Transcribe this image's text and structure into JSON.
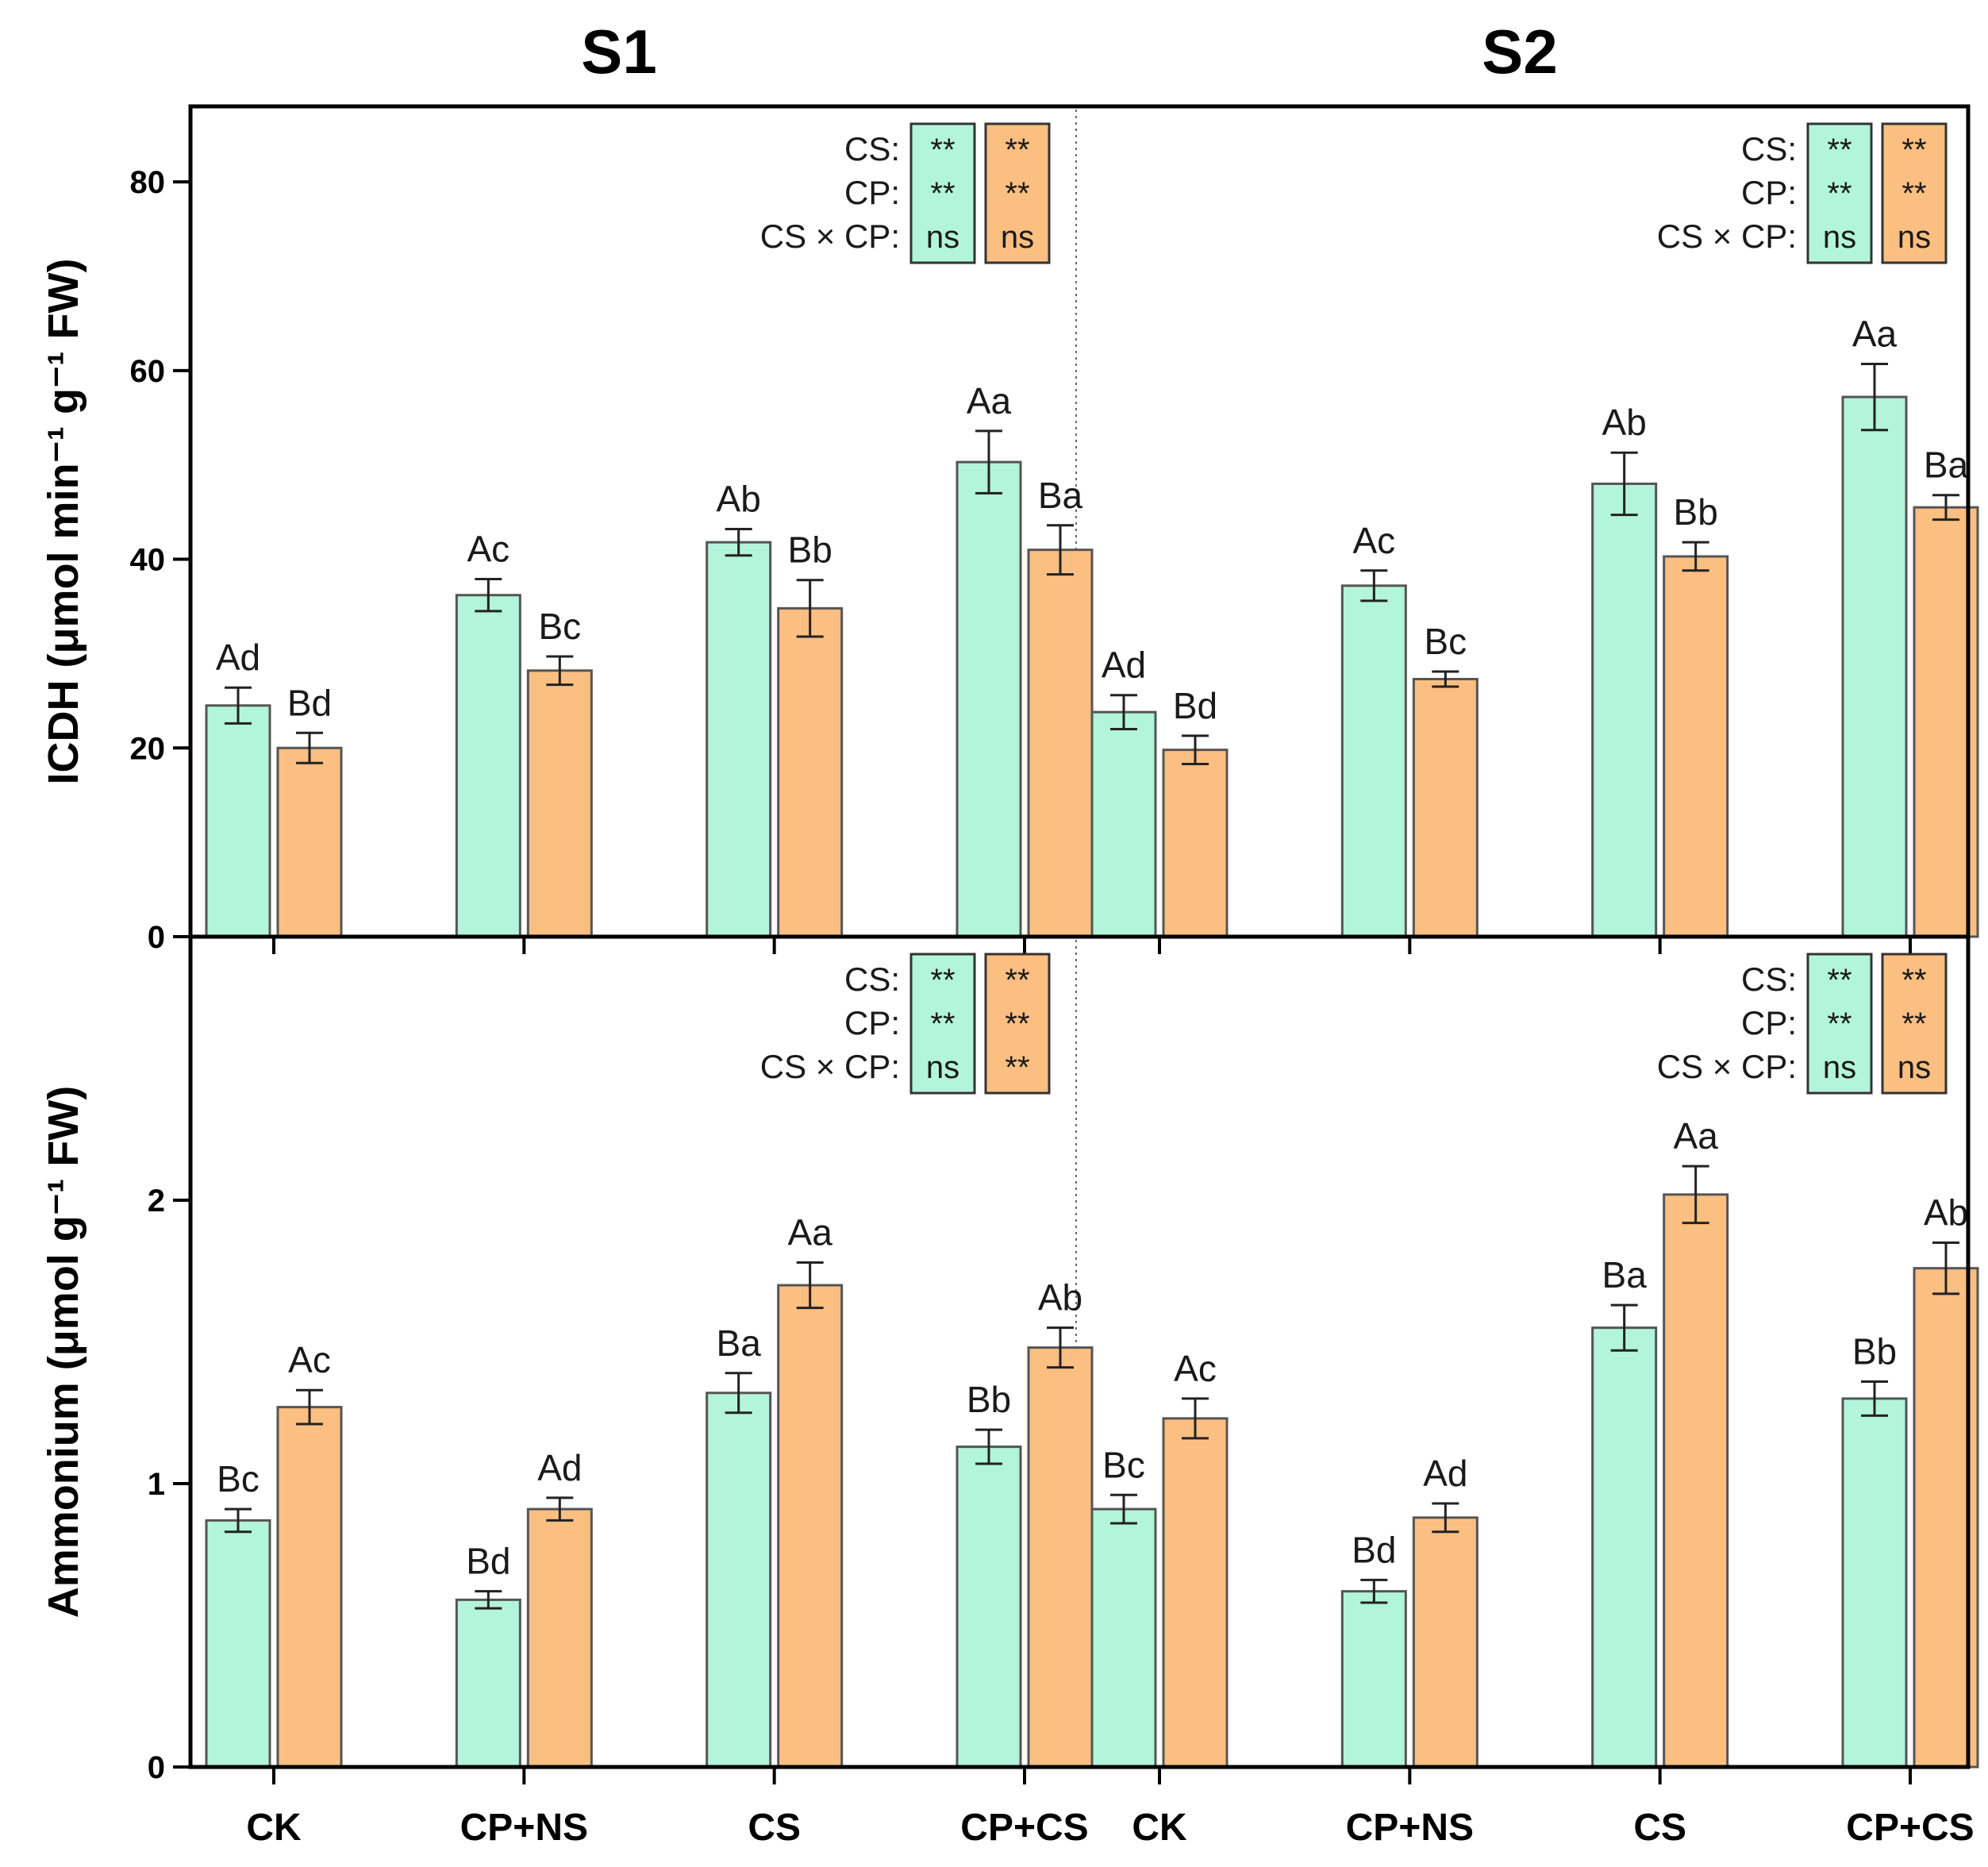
{
  "chart_data": {
    "type": "bar",
    "panel_titles": [
      "S1",
      "S2"
    ],
    "categories": [
      "CK",
      "CP+NS",
      "CS",
      "CP+CS"
    ],
    "colors": {
      "series_1": "#b3f5dc",
      "series_2": "#fcbf82"
    },
    "panels": [
      {
        "id": "icdh",
        "ylabel": "ICDH (μmol min⁻¹ g⁻¹ FW)",
        "ylim": [
          0,
          88
        ],
        "yticks": [
          0,
          20,
          40,
          60,
          80
        ],
        "groups": [
          {
            "title": "S1",
            "values_1": [
              24.5,
              36.2,
              41.8,
              50.3
            ],
            "err_1": [
              1.9,
              1.7,
              1.4,
              3.3
            ],
            "labels_1": [
              "Ad",
              "Ac",
              "Ab",
              "Aa"
            ],
            "values_2": [
              20.0,
              28.2,
              34.8,
              41.0
            ],
            "err_2": [
              1.6,
              1.5,
              3.0,
              2.6
            ],
            "labels_2": [
              "Bd",
              "Bc",
              "Bb",
              "Ba"
            ],
            "stats": [
              {
                "label": "CS:",
                "v1": "**",
                "v2": "**"
              },
              {
                "label": "CP:",
                "v1": "**",
                "v2": "**"
              },
              {
                "label": "CS × CP:",
                "v1": "ns",
                "v2": "ns"
              }
            ]
          },
          {
            "title": "S2",
            "values_1": [
              23.8,
              37.2,
              48.0,
              57.2
            ],
            "err_1": [
              1.8,
              1.6,
              3.3,
              3.5
            ],
            "labels_1": [
              "Ad",
              "Ac",
              "Ab",
              "Aa"
            ],
            "values_2": [
              19.8,
              27.3,
              40.3,
              45.5
            ],
            "err_2": [
              1.5,
              0.8,
              1.5,
              1.3
            ],
            "labels_2": [
              "Bd",
              "Bc",
              "Bb",
              "Ba"
            ],
            "stats": [
              {
                "label": "CS:",
                "v1": "**",
                "v2": "**"
              },
              {
                "label": "CP:",
                "v1": "**",
                "v2": "**"
              },
              {
                "label": "CS × CP:",
                "v1": "ns",
                "v2": "ns"
              }
            ]
          }
        ]
      },
      {
        "id": "ammonium",
        "ylabel": "Ammonium (μmol g⁻¹ FW)",
        "ylim": [
          0,
          2.93
        ],
        "yticks": [
          0,
          1,
          2
        ],
        "groups": [
          {
            "title": "S1",
            "values_1": [
              0.87,
              0.59,
              1.32,
              1.13
            ],
            "err_1": [
              0.04,
              0.03,
              0.07,
              0.06
            ],
            "labels_1": [
              "Bc",
              "Bd",
              "Ba",
              "Bb"
            ],
            "values_2": [
              1.27,
              0.91,
              1.7,
              1.48
            ],
            "err_2": [
              0.06,
              0.04,
              0.08,
              0.07
            ],
            "labels_2": [
              "Ac",
              "Ad",
              "Aa",
              "Ab"
            ],
            "stats": [
              {
                "label": "CS:",
                "v1": "**",
                "v2": "**"
              },
              {
                "label": "CP:",
                "v1": "**",
                "v2": "**"
              },
              {
                "label": "CS × CP:",
                "v1": "ns",
                "v2": "**"
              }
            ]
          },
          {
            "title": "S2",
            "values_1": [
              0.91,
              0.62,
              1.55,
              1.3
            ],
            "err_1": [
              0.05,
              0.04,
              0.08,
              0.06
            ],
            "labels_1": [
              "Bc",
              "Bd",
              "Ba",
              "Bb"
            ],
            "values_2": [
              1.23,
              0.88,
              2.02,
              1.76
            ],
            "err_2": [
              0.07,
              0.05,
              0.1,
              0.09
            ],
            "labels_2": [
              "Ac",
              "Ad",
              "Aa",
              "Ab"
            ],
            "stats": [
              {
                "label": "CS:",
                "v1": "**",
                "v2": "**"
              },
              {
                "label": "CP:",
                "v1": "**",
                "v2": "**"
              },
              {
                "label": "CS × CP:",
                "v1": "ns",
                "v2": "ns"
              }
            ]
          }
        ]
      }
    ]
  }
}
